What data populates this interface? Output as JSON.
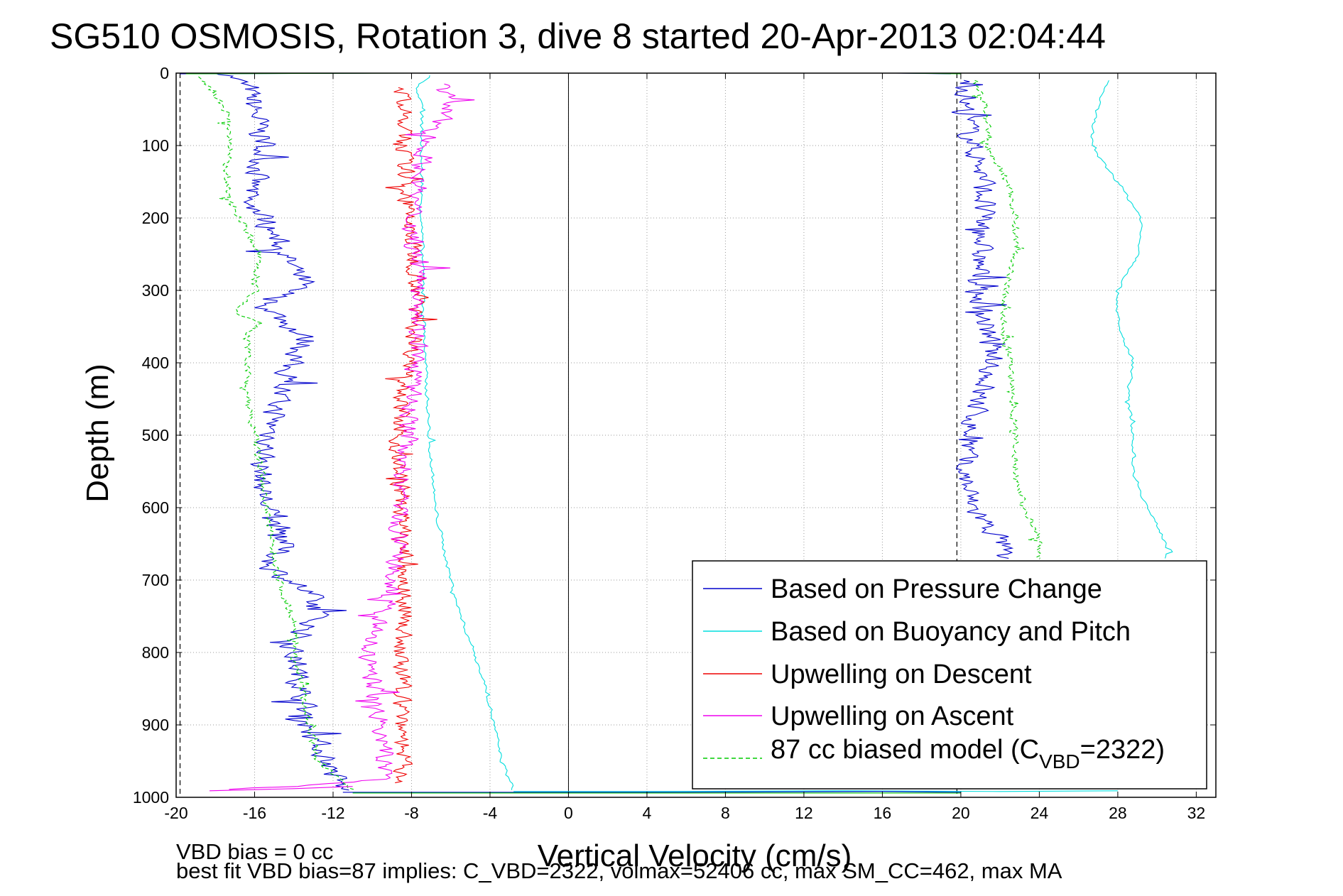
{
  "chart_data": {
    "type": "line",
    "title": "SG510 OSMOSIS, Rotation 3, dive 8 started 20-Apr-2013 02:04:44",
    "xlabel": "Vertical Velocity (cm/s)",
    "ylabel": "Depth (m)",
    "xlim": [
      -20,
      33
    ],
    "ylim": [
      0,
      1000
    ],
    "y_reversed": true,
    "grid": true,
    "xticks": [
      -20,
      -16,
      -12,
      -8,
      -4,
      0,
      4,
      8,
      12,
      16,
      20,
      24,
      28,
      32
    ],
    "yticks": [
      0,
      100,
      200,
      300,
      400,
      500,
      600,
      700,
      800,
      900,
      1000
    ],
    "reference_lines_x": [
      -19.8,
      19.8
    ],
    "legend": {
      "position": "bottom-right",
      "entries": [
        "Based on Pressure Change",
        "Based on Buoyancy and Pitch",
        "Upwelling on Descent",
        "Upwelling on Ascent"
      ],
      "model_entry": {
        "prefix": "87 cc biased model (C",
        "subscript": "VBD",
        "suffix": "=2322)"
      }
    },
    "series": [
      {
        "name": "Based on Pressure Change",
        "color": "#0000cc",
        "style": "solid",
        "segments": [
          {
            "depth": [
              0,
              20,
              50,
              100,
              150,
              180,
              200,
              250,
              290,
              320,
              370,
              400,
              450,
              500,
              550,
              600,
              650,
              680,
              720,
              750,
              790,
              850,
              900,
              950,
              990
            ],
            "velocity": [
              -17.5,
              -16.3,
              -16,
              -15.5,
              -16,
              -16.5,
              -15.5,
              -14.5,
              -13.5,
              -15.5,
              -13.3,
              -14.2,
              -14.8,
              -15.2,
              -15.7,
              -15.4,
              -14.4,
              -15.3,
              -13.2,
              -12.8,
              -14.1,
              -13.6,
              -13.3,
              -12.3,
              -11.5
            ]
          },
          {
            "depth": [
              10,
              50,
              100,
              150,
              200,
              250,
              300,
              350,
              400,
              450,
              500,
              550,
              600,
              650,
              670
            ],
            "velocity": [
              20.3,
              20.2,
              20.6,
              21.2,
              21.1,
              21.0,
              20.8,
              21.3,
              21.6,
              20.9,
              20.4,
              20.1,
              20.6,
              22.2,
              21.9
            ]
          }
        ]
      },
      {
        "name": "Based on Buoyancy and Pitch",
        "color": "#00dddd",
        "style": "solid",
        "segments": [
          {
            "depth": [
              3,
              20,
              40,
              100,
              200,
              300,
              400,
              500,
              600,
              700,
              750,
              800,
              850,
              900,
              950,
              990
            ],
            "velocity": [
              -7,
              -7.8,
              -7.5,
              -7.5,
              -7.5,
              -7.4,
              -7.3,
              -7.1,
              -6.8,
              -6.0,
              -5.5,
              -4.8,
              -4.2,
              -3.8,
              -3.4,
              -2.8
            ]
          },
          {
            "depth": [
              10,
              50,
              100,
              150,
              200,
              250,
              300,
              350,
              400,
              450,
              500,
              550,
              600,
              650,
              670
            ],
            "velocity": [
              27.5,
              26.9,
              26.6,
              28,
              29.2,
              29.1,
              28,
              28,
              28.8,
              28.5,
              28.8,
              28.8,
              29.5,
              30.5,
              30.5
            ]
          }
        ]
      },
      {
        "name": "Upwelling on Descent",
        "color": "#ee0000",
        "style": "solid",
        "segments": [
          {
            "depth": [
              20,
              100,
              200,
              300,
              400,
              500,
              600,
              700,
              750,
              800,
              900,
              980
            ],
            "velocity": [
              -8.5,
              -8.4,
              -8.2,
              -7.6,
              -8.0,
              -8.8,
              -8.5,
              -8.4,
              -8.3,
              -8.6,
              -8.4,
              -8.5
            ]
          }
        ]
      },
      {
        "name": "Upwelling on Ascent",
        "color": "#ee00ee",
        "style": "solid",
        "segments": [
          {
            "depth": [
              15,
              40,
              100,
              200,
              300,
              400,
              500,
              600,
              700,
              800,
              900,
              975,
              985,
              990
            ],
            "velocity": [
              -6.5,
              -6.0,
              -7.3,
              -8.0,
              -7.5,
              -7.8,
              -8.2,
              -8.6,
              -9.0,
              -10.3,
              -9.6,
              -9.3,
              -14.0,
              -18.3
            ]
          }
        ]
      },
      {
        "name": "87 cc biased model",
        "color": "#00cc00",
        "style": "dashed",
        "segments": [
          {
            "depth": [
              5,
              20,
              60,
              100,
              150,
              180,
              200,
              250,
              300,
              330,
              345,
              360,
              400,
              440,
              500,
              600,
              700,
              770,
              800,
              900,
              950,
              990
            ],
            "velocity": [
              -18.8,
              -18.3,
              -17.3,
              -17.3,
              -17.5,
              -17.2,
              -16.7,
              -15.8,
              -16.0,
              -17.0,
              -15.7,
              -16.4,
              -16.3,
              -16.5,
              -16.0,
              -15.4,
              -14.8,
              -13.8,
              -14.0,
              -13.2,
              -12.8,
              -11.0
            ]
          },
          {
            "depth": [
              10,
              50,
              100,
              150,
              200,
              250,
              300,
              350,
              400,
              450,
              500,
              550,
              600,
              650,
              670
            ],
            "velocity": [
              20.7,
              21.3,
              21.3,
              22.4,
              22.8,
              22.8,
              22.3,
              22.1,
              22.5,
              22.7,
              22.7,
              22.8,
              23.2,
              24.1,
              24.0
            ]
          }
        ]
      }
    ]
  },
  "footer": {
    "line1": "VBD bias = 0 cc",
    "line2": "best fit VBD bias=87 implies: C_VBD=2322, volmax=52406 cc, max SM_CC=462, max MA"
  }
}
